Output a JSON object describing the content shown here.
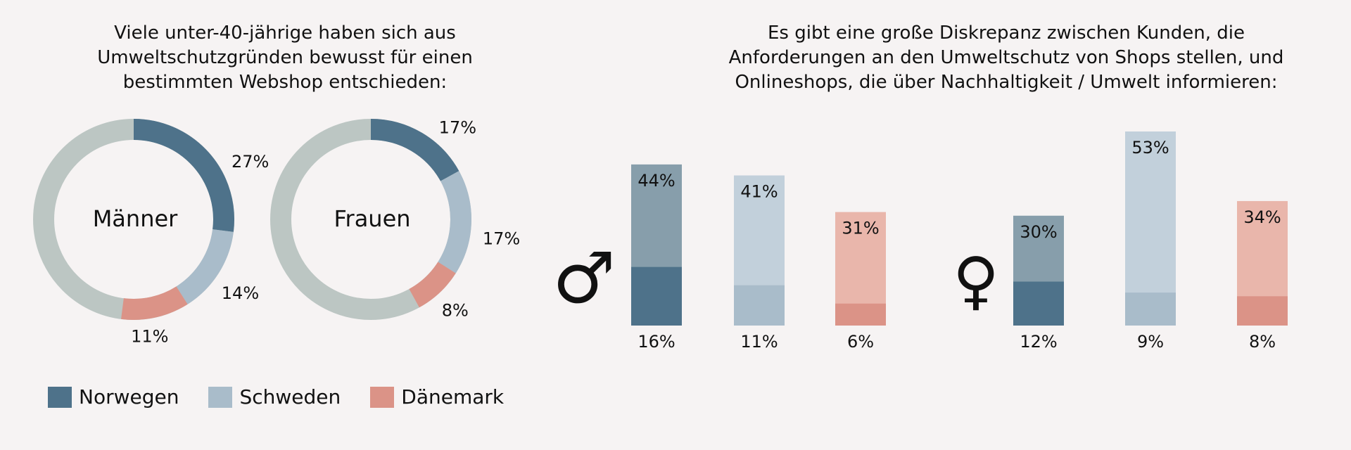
{
  "colors": {
    "norwegen": "#4e728a",
    "schweden": "#a9bcca",
    "daenemark": "#db9387",
    "rest": "#bcc6c3",
    "norwegen_light": "#879eab",
    "schweden_light": "#c2d0db",
    "daenemark_light": "#e9b6ab"
  },
  "chart_data": [
    {
      "type": "pie",
      "variant": "donut",
      "title": "Viele unter-40-jährige haben sich aus\nUmweltschutzgründen bewusst für einen\nbestimmten Webshop entschieden:",
      "charts": [
        {
          "center_label": "Männer",
          "slices": [
            {
              "name": "Norwegen",
              "value": 27,
              "label": "27%"
            },
            {
              "name": "Schweden",
              "value": 14,
              "label": "14%"
            },
            {
              "name": "Dänemark",
              "value": 11,
              "label": "11%"
            }
          ]
        },
        {
          "center_label": "Frauen",
          "slices": [
            {
              "name": "Norwegen",
              "value": 17,
              "label": "17%"
            },
            {
              "name": "Schweden",
              "value": 17,
              "label": "17%"
            },
            {
              "name": "Dänemark",
              "value": 8,
              "label": "8%"
            }
          ]
        }
      ],
      "legend": {
        "position": "bottom-left",
        "entries": [
          "Norwegen",
          "Schweden",
          "Dänemark"
        ]
      }
    },
    {
      "type": "bar",
      "variant": "overlapping",
      "title": "Es gibt eine große Diskrepanz zwischen Kunden, die\nAnforderungen an den Umweltschutz von Shops stellen, und\nOnlineshops, die über Nachhaltigkeit / Umwelt informieren:",
      "ylim": [
        0,
        53
      ],
      "groups": [
        {
          "symbol": "♂",
          "categories": [
            "Norwegen",
            "Schweden",
            "Dänemark"
          ],
          "outer": [
            44,
            41,
            31
          ],
          "outer_labels": [
            "44%",
            "41%",
            "31%"
          ],
          "inner": [
            16,
            11,
            6
          ],
          "inner_labels": [
            "16%",
            "11%",
            "6%"
          ]
        },
        {
          "symbol": "♀",
          "categories": [
            "Norwegen",
            "Schweden",
            "Dänemark"
          ],
          "outer": [
            30,
            53,
            34
          ],
          "outer_labels": [
            "30%",
            "53%",
            "34%"
          ],
          "inner": [
            12,
            9,
            8
          ],
          "inner_labels": [
            "12%",
            "9%",
            "8%"
          ]
        }
      ]
    }
  ]
}
